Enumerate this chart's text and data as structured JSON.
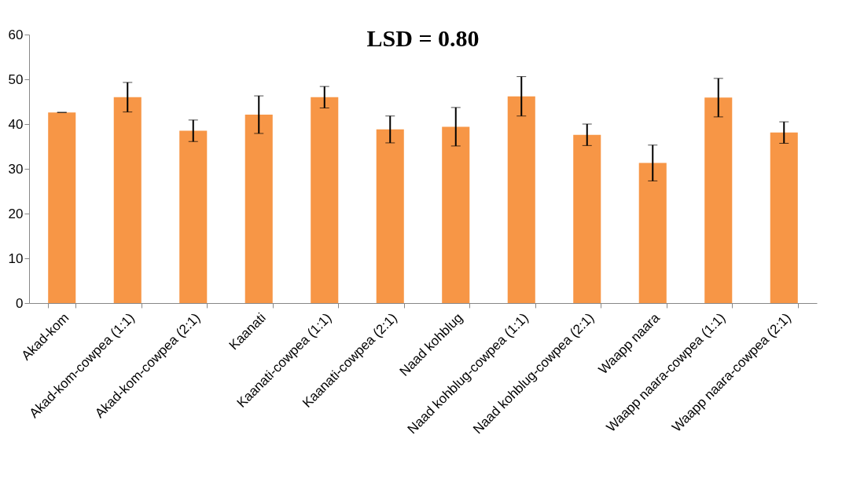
{
  "chart_data": {
    "type": "bar",
    "title": "LSD = 0.80",
    "categories": [
      "Akad-kom",
      "Akad-kom-cowpea (1:1)",
      "Akad-kom-cowpea (2:1)",
      "Kaanati",
      "Kaanati-cowpea (1:1)",
      "Kaanati-cowpea (2:1)",
      "Naad kohblug",
      "Naad kohblug-cowpea (1:1)",
      "Naad kohblug-cowpea (2:1)",
      "Waapp naara",
      "Waapp naara-cowpea (1:1)",
      "Waapp naara-cowpea (2:1)"
    ],
    "values": [
      42.6,
      46.0,
      38.5,
      42.1,
      46.0,
      38.8,
      39.4,
      46.2,
      37.6,
      31.3,
      45.9,
      38.1
    ],
    "errors": [
      0,
      3.3,
      2.4,
      4.2,
      2.4,
      3.0,
      4.3,
      4.4,
      2.4,
      4.0,
      4.3,
      2.4
    ],
    "color": "#f79646",
    "ylim": [
      0,
      60
    ],
    "yticks": [
      0,
      10,
      20,
      30,
      40,
      50,
      60
    ],
    "grid": false
  }
}
